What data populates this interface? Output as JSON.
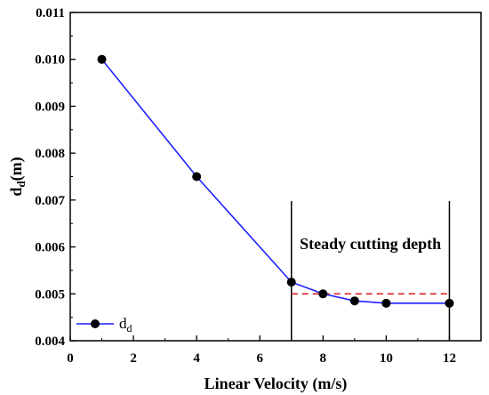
{
  "chart_data": {
    "type": "line",
    "title": "",
    "xlabel": "Linear Velocity (m/s)",
    "ylabel_main": "d",
    "ylabel_sub": "d",
    "ylabel_tail": "(m)",
    "xlim": [
      0,
      13
    ],
    "ylim": [
      0.004,
      0.011
    ],
    "xticks": [
      0,
      2,
      4,
      6,
      8,
      10,
      12
    ],
    "xtick_labels": [
      "0",
      "2",
      "4",
      "6",
      "8",
      "10",
      "12"
    ],
    "yticks": [
      0.004,
      0.005,
      0.006,
      0.007,
      0.008,
      0.009,
      0.01,
      0.011
    ],
    "ytick_labels": [
      "0.004",
      "0.005",
      "0.006",
      "0.007",
      "0.008",
      "0.009",
      "0.010",
      "0.011"
    ],
    "grid": false,
    "legend_position": "bottom-left",
    "series": [
      {
        "name_main": "d",
        "name_sub": "d",
        "color": "#1f1fff",
        "marker_color": "#000000",
        "x": [
          1,
          4,
          7,
          8,
          9,
          10,
          12
        ],
        "y": [
          0.01,
          0.0075,
          0.00525,
          0.005,
          0.00485,
          0.0048,
          0.0048
        ]
      }
    ],
    "reference_line": {
      "y": 0.005,
      "x_from": 7,
      "x_to": 12,
      "color": "#e02020",
      "style": "dashed"
    },
    "vertical_lines": [
      7,
      12
    ],
    "annotation": {
      "text": "Steady cutting depth",
      "x": 9.5,
      "y": 0.00595
    }
  }
}
